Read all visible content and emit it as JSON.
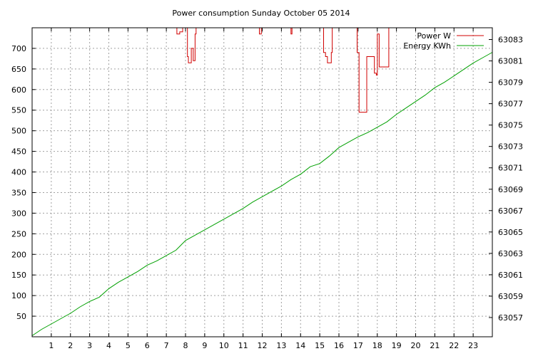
{
  "chart_data": {
    "type": "line",
    "title": "Power consumption Sunday October 05 2014",
    "xlabel": "",
    "ylabel": "",
    "y2label": "",
    "x_ticks": [
      1,
      2,
      3,
      4,
      5,
      6,
      7,
      8,
      9,
      10,
      11,
      12,
      13,
      14,
      15,
      16,
      17,
      18,
      19,
      20,
      21,
      22,
      23
    ],
    "xlim": [
      0,
      24
    ],
    "y_ticks": [
      50,
      100,
      150,
      200,
      250,
      300,
      350,
      400,
      450,
      500,
      550,
      600,
      650,
      700
    ],
    "ylim": [
      0,
      750
    ],
    "y2_ticks": [
      63057,
      63059,
      63061,
      63063,
      63065,
      63067,
      63069,
      63071,
      63073,
      63075,
      63077,
      63079,
      63081,
      63083
    ],
    "y2lim": [
      63055.2,
      63084.1
    ],
    "grid": true,
    "legend_position": "top-right",
    "colors": {
      "power": "#d00000",
      "energy": "#00a000"
    },
    "series": [
      {
        "name": "Power W",
        "axis": "y",
        "style": "steps",
        "segments": [
          [
            [
              7.55,
              750
            ],
            [
              7.55,
              735
            ],
            [
              7.7,
              735
            ],
            [
              7.7,
              740
            ],
            [
              7.85,
              740
            ],
            [
              7.85,
              750
            ]
          ],
          [
            [
              8.1,
              750
            ],
            [
              8.1,
              680
            ],
            [
              8.15,
              680
            ],
            [
              8.15,
              665
            ],
            [
              8.3,
              665
            ],
            [
              8.3,
              700
            ],
            [
              8.4,
              700
            ],
            [
              8.4,
              670
            ],
            [
              8.5,
              670
            ],
            [
              8.5,
              735
            ],
            [
              8.55,
              735
            ],
            [
              8.55,
              750
            ]
          ],
          [
            [
              11.85,
              750
            ],
            [
              11.85,
              735
            ],
            [
              11.95,
              735
            ],
            [
              11.95,
              750
            ]
          ],
          [
            [
              13.5,
              750
            ],
            [
              13.5,
              735
            ],
            [
              13.55,
              735
            ],
            [
              13.55,
              750
            ]
          ],
          [
            [
              15.2,
              750
            ],
            [
              15.2,
              690
            ],
            [
              15.3,
              690
            ],
            [
              15.3,
              680
            ],
            [
              15.4,
              680
            ],
            [
              15.4,
              665
            ],
            [
              15.6,
              665
            ],
            [
              15.6,
              690
            ],
            [
              15.65,
              690
            ],
            [
              15.65,
              750
            ]
          ],
          [
            [
              16.95,
              750
            ],
            [
              16.95,
              690
            ],
            [
              17.05,
              690
            ],
            [
              17.05,
              545
            ],
            [
              17.45,
              545
            ],
            [
              17.45,
              680
            ],
            [
              17.85,
              680
            ],
            [
              17.85,
              640
            ],
            [
              17.95,
              640
            ],
            [
              17.95,
              635
            ],
            [
              18.0,
              635
            ],
            [
              18.0,
              735
            ],
            [
              18.1,
              735
            ],
            [
              18.1,
              655
            ],
            [
              18.6,
              655
            ],
            [
              18.6,
              750
            ]
          ]
        ]
      },
      {
        "name": "Energy KWh",
        "axis": "y2",
        "x": [
          0,
          0.5,
          1,
          1.5,
          2,
          2.5,
          3,
          3.5,
          4,
          4.5,
          5,
          5.5,
          6,
          6.5,
          7,
          7.5,
          8,
          8.5,
          9,
          9.5,
          10,
          10.5,
          11,
          11.5,
          12,
          12.5,
          13,
          13.5,
          14,
          14.5,
          15,
          15.5,
          16,
          16.5,
          17,
          17.5,
          18,
          18.5,
          19,
          19.5,
          20,
          20.5,
          21,
          21.5,
          22,
          22.5,
          23,
          23.5,
          24
        ],
        "values": [
          63055.3,
          63055.9,
          63056.4,
          63056.9,
          63057.4,
          63058,
          63058.5,
          63058.9,
          63059.7,
          63060.3,
          63060.8,
          63061.3,
          63061.9,
          63062.3,
          63062.8,
          63063.3,
          63064.2,
          63064.7,
          63065.2,
          63065.7,
          63066.2,
          63066.7,
          63067.2,
          63067.8,
          63068.3,
          63068.8,
          63069.3,
          63069.9,
          63070.4,
          63071.1,
          63071.4,
          63072.1,
          63072.9,
          63073.4,
          63073.9,
          63074.3,
          63074.8,
          63075.3,
          63076,
          63076.6,
          63077.2,
          63077.8,
          63078.5,
          63079,
          63079.6,
          63080.2,
          63080.8,
          63081.3,
          63081.8
        ]
      }
    ]
  }
}
